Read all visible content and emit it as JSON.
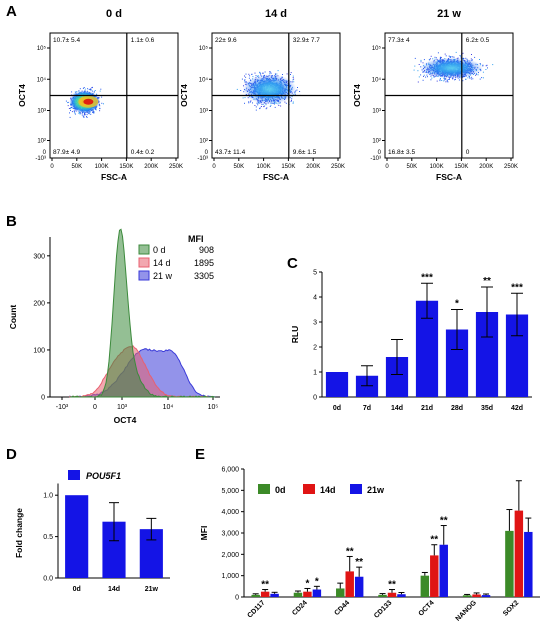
{
  "panels": {
    "A": "A",
    "B": "B",
    "C": "C",
    "D": "D",
    "E": "E"
  },
  "chart_data": [
    {
      "panel": "A",
      "type": "scatter",
      "plots": [
        {
          "title": "0 d",
          "quadrants": {
            "ul": "10.7± 5.4",
            "ur": "1.1± 0.6",
            "ll": "87.9± 4.9",
            "lr": "0.4± 0.2"
          }
        },
        {
          "title": "14 d",
          "quadrants": {
            "ul": "22± 9.6",
            "ur": "32.9± 7.7",
            "ll": "43.7± 11.4",
            "lr": "9.6± 1.5"
          }
        },
        {
          "title": "21 w",
          "quadrants": {
            "ul": "77.3± 4",
            "ur": "6.2± 0.5",
            "ll": "16.8± 3.5",
            "lr": "0"
          }
        }
      ],
      "xlabel": "FSC-A",
      "ylabel": "OCT4",
      "x_ticks": [
        "0",
        "50K",
        "100K",
        "150K",
        "200K",
        "250K"
      ],
      "y_ticks": [
        "10²",
        "10³",
        "10⁴",
        "10⁵"
      ],
      "y_tick_zero": "0",
      "y_tick_neg": "-10³"
    },
    {
      "panel": "B",
      "type": "area",
      "xlabel": "OCT4",
      "ylabel": "Count",
      "y_ticks": [
        0,
        100,
        200,
        300
      ],
      "x_ticks": [
        "-10³",
        "0",
        "10³",
        "10⁴",
        "10⁵"
      ],
      "legend_title": "MFI",
      "series": [
        {
          "name": "0 d",
          "mfi": "908",
          "color": "#3c8a3c"
        },
        {
          "name": "14 d",
          "mfi": "1895",
          "color": "#e86070"
        },
        {
          "name": "21 w",
          "mfi": "3305",
          "color": "#3a3ad8"
        }
      ]
    },
    {
      "panel": "C",
      "type": "bar",
      "categories": [
        "0d",
        "7d",
        "14d",
        "21d",
        "28d",
        "35d",
        "42d"
      ],
      "values": [
        1.0,
        0.85,
        1.6,
        3.85,
        2.7,
        3.4,
        3.3
      ],
      "errors": [
        0,
        0.4,
        0.7,
        0.7,
        0.8,
        1.0,
        0.85
      ],
      "significance": [
        "",
        "",
        "",
        "***",
        "*",
        "**",
        "***"
      ],
      "ylabel": "RLU",
      "ylim": [
        0,
        5
      ],
      "y_ticks": [
        0,
        1,
        2,
        3,
        4,
        5
      ],
      "color": "#1414e6"
    },
    {
      "panel": "D",
      "type": "bar",
      "categories": [
        "0d",
        "14d",
        "21w"
      ],
      "values": [
        1.0,
        0.68,
        0.59
      ],
      "errors": [
        0,
        0.23,
        0.13
      ],
      "ylabel": "Fold change",
      "ylim": [
        0,
        1.0
      ],
      "y_ticks": [
        "0.0",
        "0.5",
        "1.0"
      ],
      "legend": "POU5F1",
      "color": "#1414e6"
    },
    {
      "panel": "E",
      "type": "bar",
      "categories": [
        "CD117",
        "CD24",
        "CD44",
        "CD133",
        "OCT4",
        "NANOG",
        "SOX2"
      ],
      "ylabel": "MFI",
      "ylim": [
        0,
        6000
      ],
      "y_ticks": [
        "0",
        "1,000",
        "2,000",
        "3,000",
        "4,000",
        "5,000",
        "6,000"
      ],
      "series": [
        {
          "name": "0d",
          "color": "#3c8a28",
          "values": [
            100,
            200,
            400,
            100,
            1000,
            80,
            3100
          ],
          "errors": [
            50,
            80,
            250,
            60,
            150,
            40,
            1000
          ],
          "significance": [
            "",
            "",
            "",
            "",
            "",
            "",
            ""
          ]
        },
        {
          "name": "14d",
          "color": "#e01414",
          "values": [
            250,
            250,
            1200,
            200,
            1950,
            120,
            4050
          ],
          "errors": [
            100,
            150,
            700,
            150,
            500,
            70,
            1400
          ],
          "significance": [
            "**",
            "*",
            "**",
            "**",
            "**",
            "",
            ""
          ]
        },
        {
          "name": "21w",
          "color": "#1414e6",
          "values": [
            150,
            350,
            950,
            130,
            2450,
            90,
            3050
          ],
          "errors": [
            70,
            150,
            450,
            80,
            900,
            50,
            650
          ],
          "significance": [
            "",
            "*",
            "**",
            "",
            "**",
            "",
            ""
          ]
        }
      ]
    }
  ]
}
